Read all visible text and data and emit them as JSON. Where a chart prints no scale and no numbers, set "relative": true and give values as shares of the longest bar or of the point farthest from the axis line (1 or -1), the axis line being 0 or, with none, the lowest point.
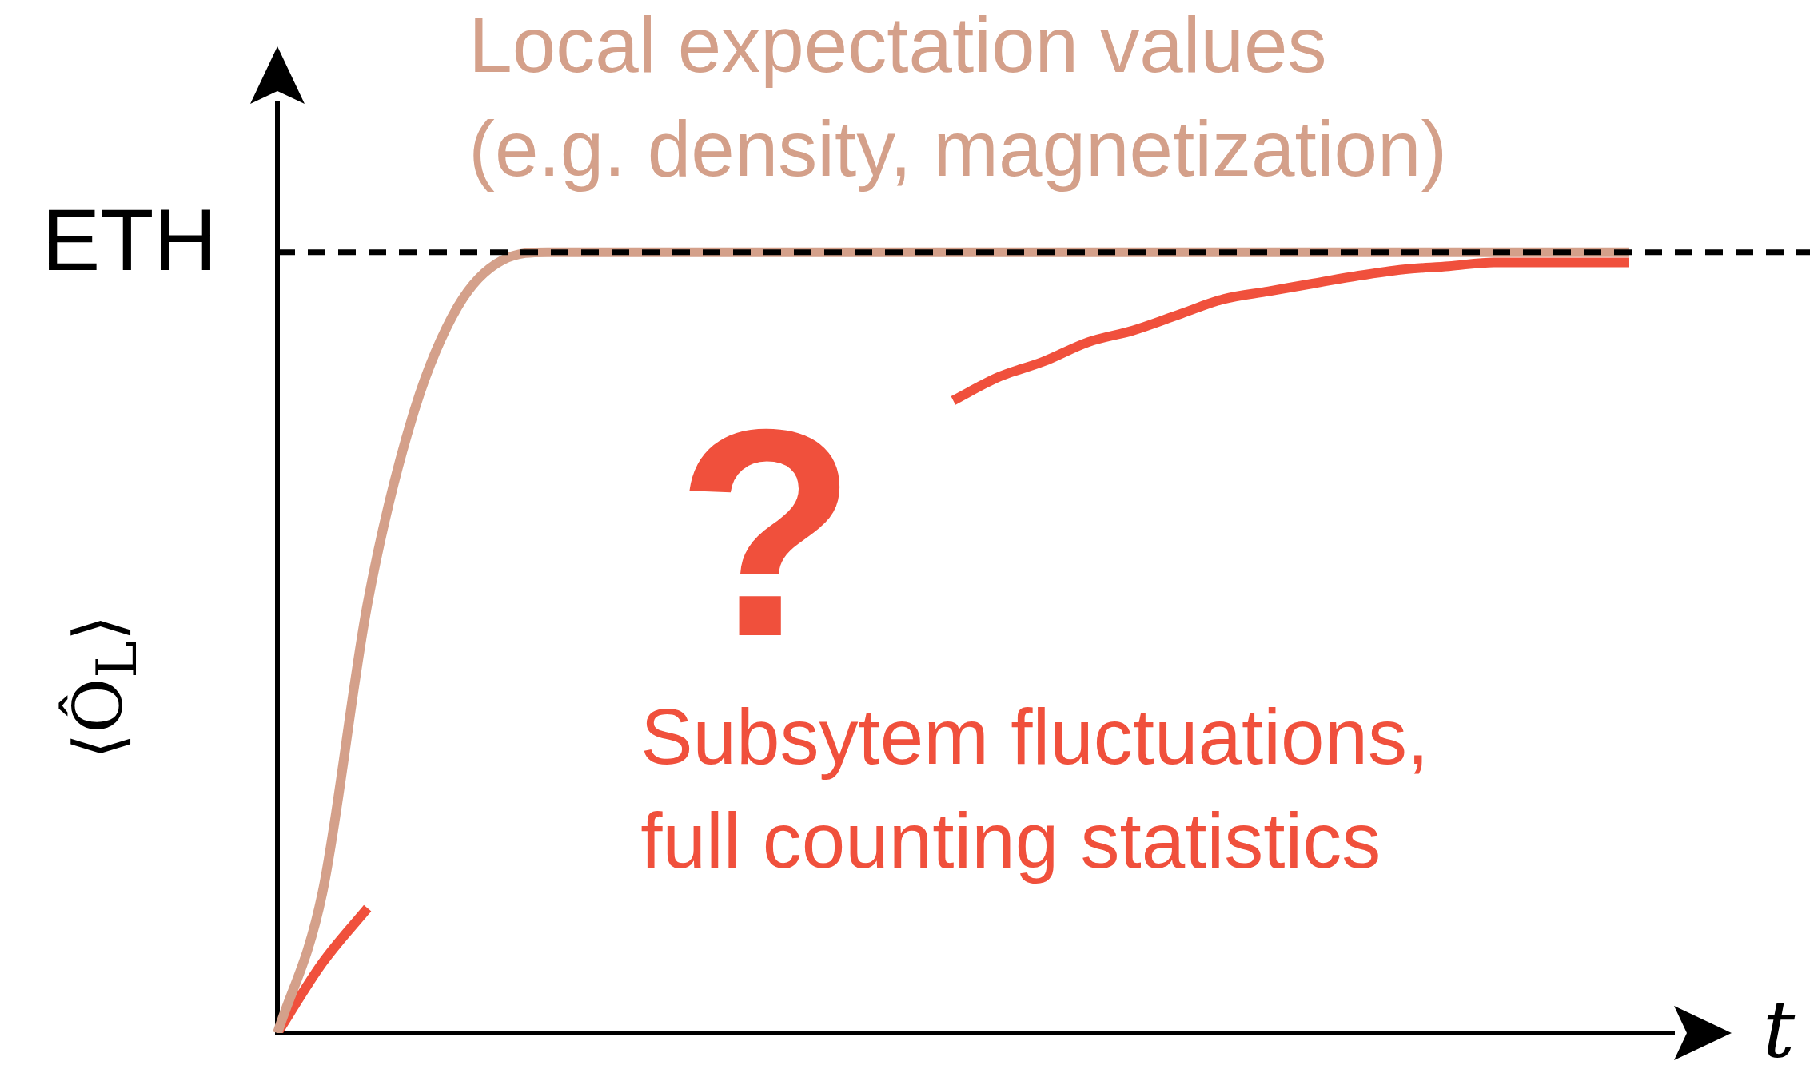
{
  "chart_data": {
    "type": "line",
    "relative": true,
    "ylabel": "⟨Ô$_{L}$⟩",
    "xlabel": "t",
    "categories": [
      null,
      null,
      null,
      null,
      null,
      null,
      null,
      null,
      null,
      null,
      null,
      null,
      null,
      null,
      null,
      null,
      null,
      null,
      null,
      null,
      null,
      null,
      null,
      null,
      null,
      null,
      null,
      null,
      null,
      null,
      null,
      null
    ],
    "series": [
      {
        "color": "#d4a08a",
        "values": [
          0,
          0.18,
          0.55,
          0.79,
          0.93,
          0.99,
          1,
          1,
          1,
          1,
          1,
          1,
          1,
          1,
          1,
          1,
          1,
          1,
          1,
          1,
          1,
          1,
          1,
          1,
          1,
          1,
          1,
          1,
          1,
          1,
          1,
          null
        ]
      },
      {
        "color": "#f0503c",
        "values": [
          0,
          0.09,
          0.16,
          null,
          null,
          null,
          null,
          null,
          null,
          null,
          null,
          null,
          null,
          null,
          null,
          0.81,
          0.84,
          0.86,
          0.885,
          0.9,
          0.92,
          0.94,
          0.95,
          0.96,
          0.97,
          0.978,
          0.982,
          0.987,
          0.987,
          0.987,
          0.987,
          null
        ]
      }
    ],
    "ref_lines": [
      {
        "axis": "y",
        "value": 1,
        "label": "ETH",
        "color": "#000000",
        "line_style": "dashed"
      }
    ],
    "annotations": [
      "Local expectation values\n(e.g. density, magnetization)",
      "?",
      "Subsytem fluctuations,\nfull counting statistics"
    ],
    "grid": false
  }
}
